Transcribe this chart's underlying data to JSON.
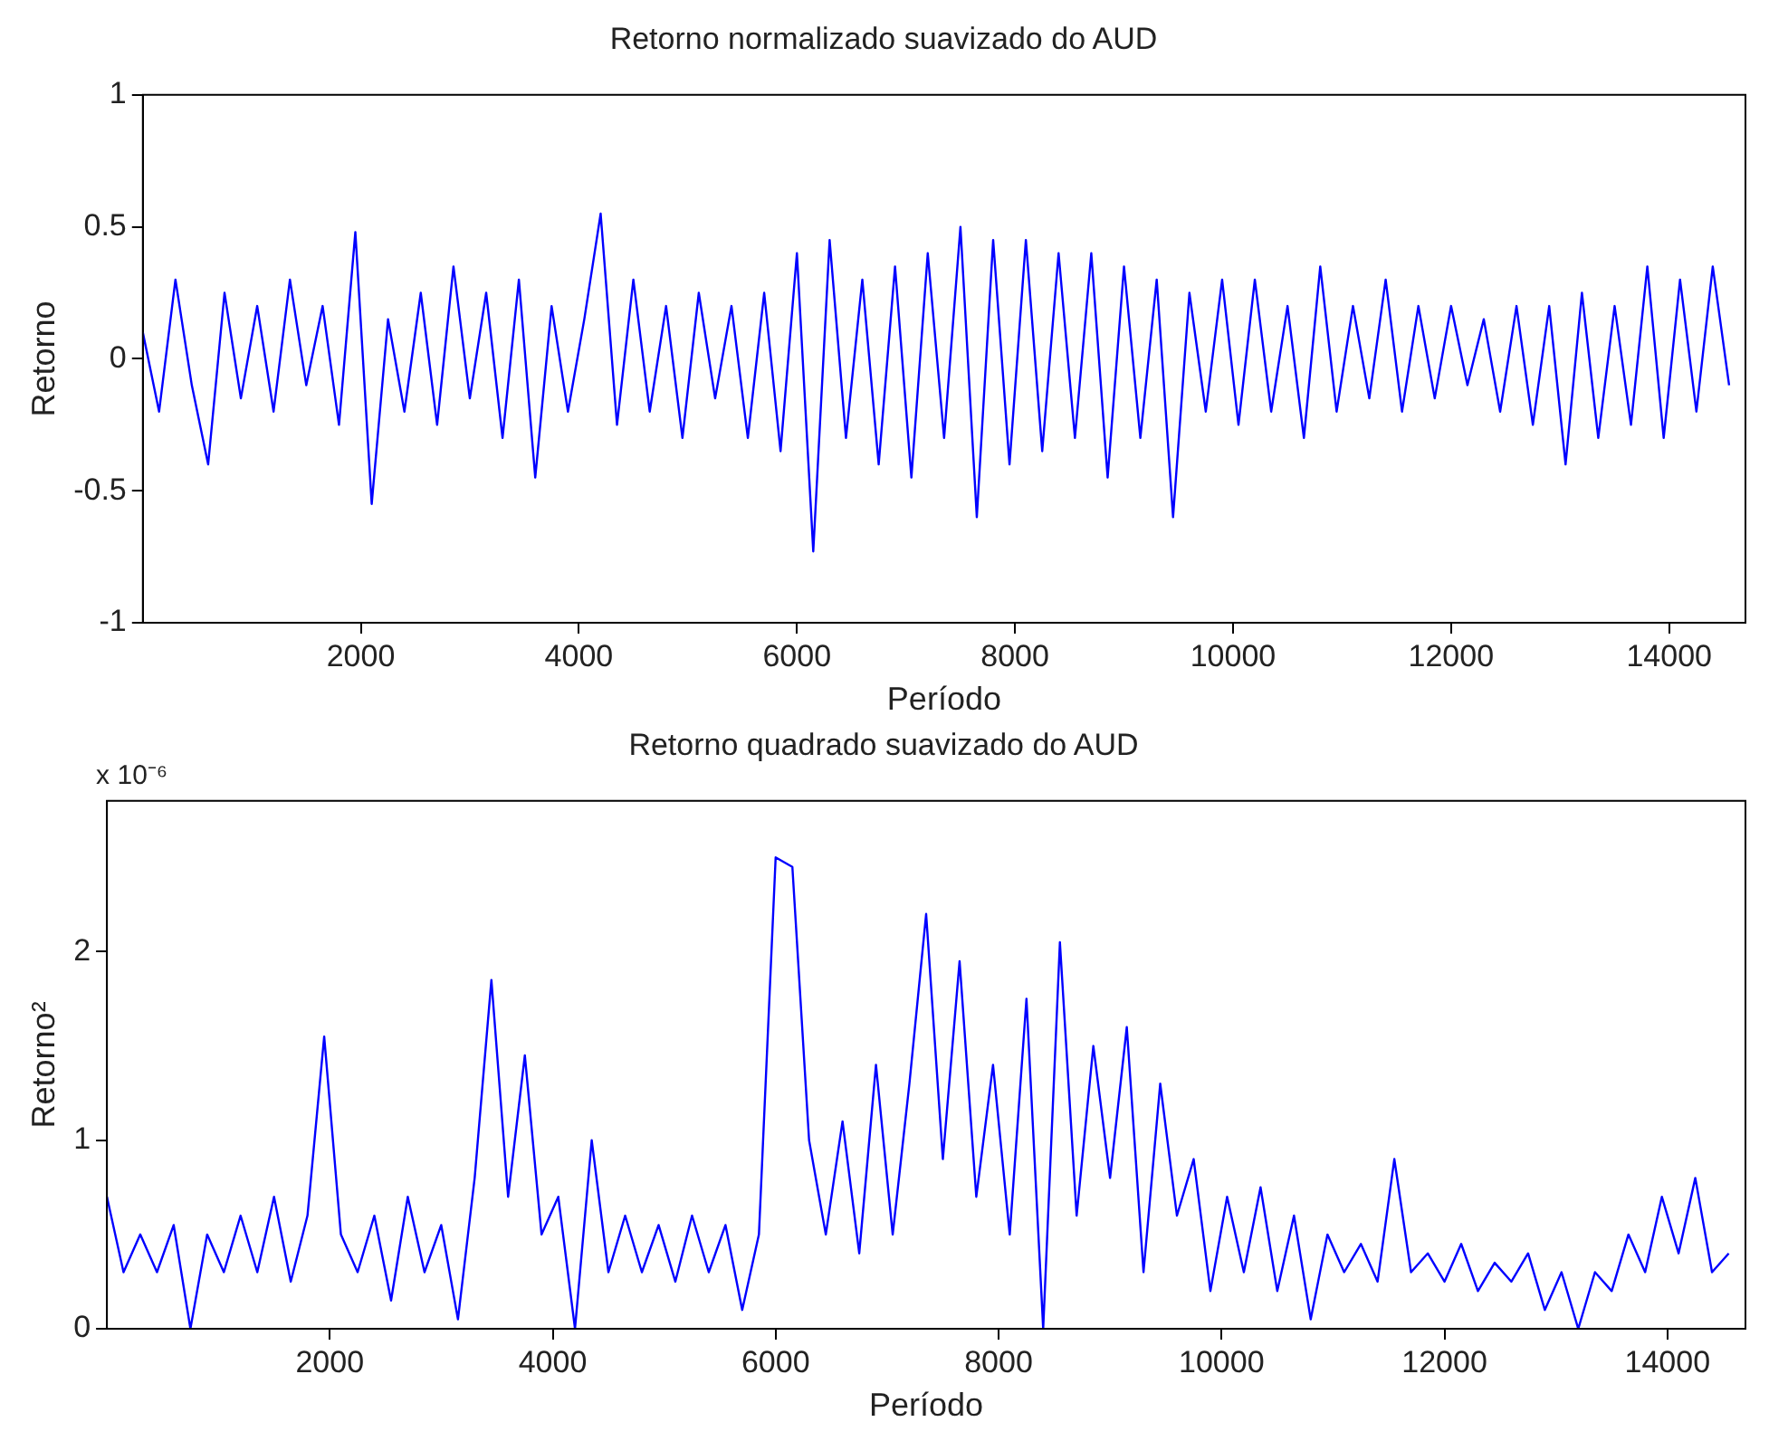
{
  "chart_data": [
    {
      "type": "line",
      "title": "Retorno normalizado suavizado do AUD",
      "xlabel": "Período",
      "ylabel": "Retorno",
      "color": "#0000ff",
      "grid": false,
      "xlim": [
        1,
        14700
      ],
      "xticks": [
        2000,
        4000,
        6000,
        8000,
        10000,
        12000,
        14000
      ],
      "ylim": [
        -1,
        1
      ],
      "yticks": [
        -1,
        -0.5,
        0,
        0.5,
        1
      ],
      "x": [
        1,
        150,
        300,
        450,
        600,
        750,
        900,
        1050,
        1200,
        1350,
        1500,
        1650,
        1800,
        1950,
        2100,
        2250,
        2400,
        2550,
        2700,
        2850,
        3000,
        3150,
        3300,
        3450,
        3600,
        3750,
        3900,
        4050,
        4200,
        4350,
        4500,
        4650,
        4800,
        4950,
        5100,
        5250,
        5400,
        5550,
        5700,
        5850,
        6000,
        6150,
        6300,
        6450,
        6600,
        6750,
        6900,
        7050,
        7200,
        7350,
        7500,
        7650,
        7800,
        7950,
        8100,
        8250,
        8400,
        8550,
        8700,
        8850,
        9000,
        9150,
        9300,
        9450,
        9600,
        9750,
        9900,
        10050,
        10200,
        10350,
        10500,
        10650,
        10800,
        10950,
        11100,
        11250,
        11400,
        11550,
        11700,
        11850,
        12000,
        12150,
        12300,
        12450,
        12600,
        12750,
        12900,
        13050,
        13200,
        13350,
        13500,
        13650,
        13800,
        13950,
        14100,
        14250,
        14400,
        14550
      ],
      "values": [
        0.1,
        -0.2,
        0.3,
        -0.1,
        -0.4,
        0.25,
        -0.15,
        0.2,
        -0.2,
        0.3,
        -0.1,
        0.2,
        -0.25,
        0.48,
        -0.55,
        0.15,
        -0.2,
        0.25,
        -0.25,
        0.35,
        -0.15,
        0.25,
        -0.3,
        0.3,
        -0.45,
        0.2,
        -0.2,
        0.15,
        0.55,
        -0.25,
        0.3,
        -0.2,
        0.2,
        -0.3,
        0.25,
        -0.15,
        0.2,
        -0.3,
        0.25,
        -0.35,
        0.4,
        -0.73,
        0.45,
        -0.3,
        0.3,
        -0.4,
        0.35,
        -0.45,
        0.4,
        -0.3,
        0.5,
        -0.6,
        0.45,
        -0.4,
        0.45,
        -0.35,
        0.4,
        -0.3,
        0.4,
        -0.45,
        0.35,
        -0.3,
        0.3,
        -0.6,
        0.25,
        -0.2,
        0.3,
        -0.25,
        0.3,
        -0.2,
        0.2,
        -0.3,
        0.35,
        -0.2,
        0.2,
        -0.15,
        0.3,
        -0.2,
        0.2,
        -0.15,
        0.2,
        -0.1,
        0.15,
        -0.2,
        0.2,
        -0.25,
        0.2,
        -0.4,
        0.25,
        -0.3,
        0.2,
        -0.25,
        0.35,
        -0.3,
        0.3,
        -0.2,
        0.35,
        -0.1
      ]
    },
    {
      "type": "line",
      "title": "Retorno quadrado suavizado do AUD",
      "xlabel": "Período",
      "ylabel": "Retorno²",
      "color": "#0000ff",
      "grid": false,
      "annotations": [
        "x 10⁻⁶"
      ],
      "xlim": [
        1,
        14700
      ],
      "xticks": [
        2000,
        4000,
        6000,
        8000,
        10000,
        12000,
        14000
      ],
      "ylim": [
        0,
        2.8
      ],
      "yticks": [
        0,
        1,
        2
      ],
      "x": [
        1,
        150,
        300,
        450,
        600,
        750,
        900,
        1050,
        1200,
        1350,
        1500,
        1650,
        1800,
        1950,
        2100,
        2250,
        2400,
        2550,
        2700,
        2850,
        3000,
        3150,
        3300,
        3450,
        3600,
        3750,
        3900,
        4050,
        4200,
        4350,
        4500,
        4650,
        4800,
        4950,
        5100,
        5250,
        5400,
        5550,
        5700,
        5850,
        6000,
        6150,
        6300,
        6450,
        6600,
        6750,
        6900,
        7050,
        7200,
        7350,
        7500,
        7650,
        7800,
        7950,
        8100,
        8250,
        8400,
        8550,
        8700,
        8850,
        9000,
        9150,
        9300,
        9450,
        9600,
        9750,
        9900,
        10050,
        10200,
        10350,
        10500,
        10650,
        10800,
        10950,
        11100,
        11250,
        11400,
        11550,
        11700,
        11850,
        12000,
        12150,
        12300,
        12450,
        12600,
        12750,
        12900,
        13050,
        13200,
        13350,
        13500,
        13650,
        13800,
        13950,
        14100,
        14250,
        14400,
        14550
      ],
      "values": [
        0.7,
        0.3,
        0.5,
        0.3,
        0.55,
        0.0,
        0.5,
        0.3,
        0.6,
        0.3,
        0.7,
        0.25,
        0.6,
        1.55,
        0.5,
        0.3,
        0.6,
        0.15,
        0.7,
        0.3,
        0.55,
        0.05,
        0.8,
        1.85,
        0.7,
        1.45,
        0.5,
        0.7,
        0.0,
        1.0,
        0.3,
        0.6,
        0.3,
        0.55,
        0.25,
        0.6,
        0.3,
        0.55,
        0.1,
        0.5,
        2.5,
        2.45,
        1.0,
        0.5,
        1.1,
        0.4,
        1.4,
        0.5,
        1.3,
        2.2,
        0.9,
        1.95,
        0.7,
        1.4,
        0.5,
        1.75,
        0.0,
        2.05,
        0.6,
        1.5,
        0.8,
        1.6,
        0.3,
        1.3,
        0.6,
        0.9,
        0.2,
        0.7,
        0.3,
        0.75,
        0.2,
        0.6,
        0.05,
        0.5,
        0.3,
        0.45,
        0.25,
        0.9,
        0.3,
        0.4,
        0.25,
        0.45,
        0.2,
        0.35,
        0.25,
        0.4,
        0.1,
        0.3,
        0.0,
        0.3,
        0.2,
        0.5,
        0.3,
        0.7,
        0.4,
        0.8,
        0.3,
        0.4
      ]
    }
  ]
}
